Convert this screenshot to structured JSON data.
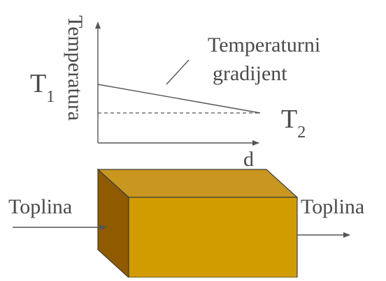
{
  "graph": {
    "y_axis_label": "Temperatura",
    "x_axis_label": "d",
    "gradient_label_line1": "Temperaturni",
    "gradient_label_line2": "gradijent",
    "t1_symbol": "T",
    "t1_subscript": "1",
    "t2_symbol": "T",
    "t2_subscript": "2"
  },
  "block": {
    "left_label": "Toplina",
    "right_label": "Toplina",
    "colors": {
      "top": "#c9961f",
      "front": "#d09c00",
      "side": "#8f5a00"
    }
  },
  "colors": {
    "text": "#4a4a4a",
    "line": "#555555"
  }
}
